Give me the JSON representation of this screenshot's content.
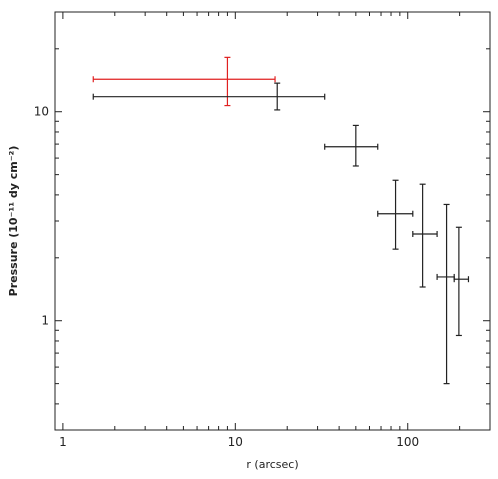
{
  "chart_data": {
    "type": "scatter",
    "xlabel": "r (arcsec)",
    "ylabel": "Pressure (10⁻¹¹ dy cm⁻²)",
    "xscale": "log",
    "yscale": "log",
    "xlim": [
      0.9,
      300
    ],
    "ylim": [
      0.3,
      30
    ],
    "grid": false,
    "x_ticks": [
      {
        "value": 1,
        "label": "1"
      },
      {
        "value": 10,
        "label": "10"
      },
      {
        "value": 100,
        "label": "100"
      }
    ],
    "y_ticks": [
      {
        "value": 1,
        "label": "1"
      },
      {
        "value": 10,
        "label": "10"
      }
    ],
    "series": [
      {
        "color": "#e02020",
        "points": [
          {
            "x": 9.0,
            "y": 14.3,
            "xerr": [
              1.5,
              17.0
            ],
            "yerr": [
              10.7,
              18.2
            ]
          }
        ]
      },
      {
        "color": "#222222",
        "points": [
          {
            "x": 17.5,
            "y": 11.8,
            "xerr": [
              1.5,
              33.0
            ],
            "yerr": [
              10.2,
              13.7
            ]
          },
          {
            "x": 50.0,
            "y": 6.8,
            "xerr": [
              33.0,
              67.0
            ],
            "yerr": [
              5.5,
              8.6
            ]
          },
          {
            "x": 85.0,
            "y": 3.25,
            "xerr": [
              67.0,
              107.0
            ],
            "yerr": [
              2.2,
              4.7
            ]
          },
          {
            "x": 122.0,
            "y": 2.6,
            "xerr": [
              107.0,
              148.0
            ],
            "yerr": [
              1.45,
              4.5
            ]
          },
          {
            "x": 168.0,
            "y": 1.62,
            "xerr": [
              148.0,
              186.0
            ],
            "yerr": [
              0.5,
              3.6
            ]
          },
          {
            "x": 198.0,
            "y": 1.58,
            "xerr": [
              186.0,
              225.0
            ],
            "yerr": [
              0.85,
              2.8
            ]
          }
        ]
      }
    ]
  }
}
